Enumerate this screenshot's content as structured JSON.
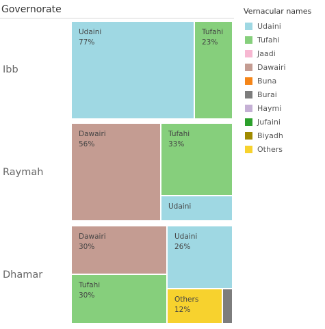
{
  "header": "Governorate",
  "legend": {
    "title": "Vernacular names",
    "items": [
      {
        "label": "Udaini",
        "color": "#9fd8e3"
      },
      {
        "label": "Tufahi",
        "color": "#86cf7c"
      },
      {
        "label": "Jaadi",
        "color": "#f7b8d2"
      },
      {
        "label": "Dawairi",
        "color": "#c49c92"
      },
      {
        "label": "Buna",
        "color": "#f58518"
      },
      {
        "label": "Burai",
        "color": "#7d7d7d"
      },
      {
        "label": "Haymi",
        "color": "#c5b0d5"
      },
      {
        "label": "Jufaini",
        "color": "#2ca02c"
      },
      {
        "label": "Biyadh",
        "color": "#a08a00"
      },
      {
        "label": "Others",
        "color": "#f7d22e"
      }
    ]
  },
  "chart_data": {
    "type": "treemap",
    "groups": [
      {
        "name": "Ibb",
        "items": [
          {
            "name": "Udaini",
            "value": 77,
            "label": "Udaini",
            "pct_label": "77%"
          },
          {
            "name": "Tufahi",
            "value": 23,
            "label": "Tufahi",
            "pct_label": "23%"
          }
        ]
      },
      {
        "name": "Raymah",
        "items": [
          {
            "name": "Dawairi",
            "value": 56,
            "label": "Dawairi",
            "pct_label": "56%"
          },
          {
            "name": "Tufahi",
            "value": 33,
            "label": "Tufahi",
            "pct_label": "33%"
          },
          {
            "name": "Udaini",
            "value": 11,
            "label": "Udaini",
            "pct_label": ""
          }
        ]
      },
      {
        "name": "Dhamar",
        "items": [
          {
            "name": "Dawairi",
            "value": 30,
            "label": "Dawairi",
            "pct_label": "30%"
          },
          {
            "name": "Tufahi",
            "value": 30,
            "label": "Tufahi",
            "pct_label": "30%"
          },
          {
            "name": "Udaini",
            "value": 26,
            "label": "Udaini",
            "pct_label": "26%"
          },
          {
            "name": "Others",
            "value": 12,
            "label": "Others",
            "pct_label": "12%"
          },
          {
            "name": "Burai",
            "value": 2,
            "label": "",
            "pct_label": ""
          }
        ]
      }
    ]
  }
}
